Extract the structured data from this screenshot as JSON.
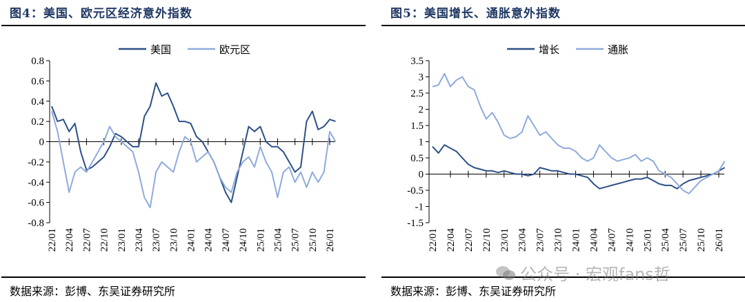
{
  "left": {
    "title": "图4：美国、欧元区经济意外指数",
    "source": "数据来源：彭博、东吴证券研究所"
  },
  "right": {
    "title": "图5：美国增长、通胀意外指数",
    "source": "数据来源：彭博、东吴证券研究所"
  },
  "watermark": "公众号 · 宏观fans哲",
  "colors": {
    "dark": "#2b4f86",
    "light": "#8eaadc",
    "title": "#1f3864"
  },
  "chart_data": [
    {
      "type": "line",
      "title": "美国、欧元区经济意外指数",
      "ylim": [
        -0.8,
        0.8
      ],
      "yticks": [
        "0.8",
        "0.6",
        "0.4",
        "0.2",
        "0",
        "-0.2",
        "-0.4",
        "-0.6",
        "-0.8"
      ],
      "ytick_values": [
        0.8,
        0.6,
        0.4,
        0.2,
        0,
        -0.2,
        -0.4,
        -0.6,
        -0.8
      ],
      "xticks": [
        "22/01",
        "22/04",
        "22/07",
        "22/10",
        "23/01",
        "23/04",
        "23/07",
        "23/10",
        "24/01",
        "24/04",
        "24/07",
        "24/10",
        "25/01",
        "25/04",
        "25/07",
        "25/10",
        "26/01"
      ],
      "x_start": "22/01",
      "x_interval": "monthly",
      "legend_position": "top-center",
      "series": [
        {
          "name": "美国",
          "color": "dark",
          "values": [
            0.35,
            0.2,
            0.22,
            0.1,
            0.18,
            -0.1,
            -0.28,
            -0.25,
            -0.2,
            -0.15,
            -0.05,
            0.08,
            0.05,
            0.0,
            -0.05,
            -0.05,
            0.25,
            0.35,
            0.58,
            0.45,
            0.48,
            0.35,
            0.2,
            0.2,
            0.18,
            0.05,
            0.0,
            -0.1,
            -0.2,
            -0.35,
            -0.5,
            -0.6,
            -0.35,
            -0.1,
            0.15,
            0.1,
            0.15,
            0.0,
            -0.05,
            -0.05,
            -0.1,
            -0.2,
            -0.3,
            -0.25,
            0.2,
            0.3,
            0.12,
            0.15,
            0.22,
            0.2
          ]
        },
        {
          "name": "欧元区",
          "color": "light",
          "values": [
            0.3,
            0.1,
            -0.2,
            -0.5,
            -0.3,
            -0.25,
            -0.3,
            -0.2,
            -0.1,
            0.0,
            0.15,
            0.05,
            0.0,
            -0.05,
            -0.1,
            -0.3,
            -0.55,
            -0.65,
            -0.3,
            -0.2,
            -0.25,
            -0.3,
            -0.1,
            0.05,
            0.0,
            -0.2,
            -0.15,
            -0.1,
            -0.2,
            -0.35,
            -0.45,
            -0.5,
            -0.3,
            -0.2,
            -0.15,
            -0.25,
            -0.05,
            -0.2,
            -0.3,
            -0.55,
            -0.3,
            -0.25,
            -0.4,
            -0.3,
            -0.45,
            -0.3,
            -0.4,
            -0.3,
            0.1,
            0.0
          ]
        }
      ]
    },
    {
      "type": "line",
      "title": "美国增长、通胀意外指数",
      "ylim": [
        -1.5,
        3.5
      ],
      "yticks": [
        "3.5",
        "3",
        "2.5",
        "2",
        "1.5",
        "1",
        "0.5",
        "0",
        "-0.5",
        "-1",
        "-1.5"
      ],
      "ytick_values": [
        3.5,
        3,
        2.5,
        2,
        1.5,
        1,
        0.5,
        0,
        -0.5,
        -1,
        -1.5
      ],
      "xticks": [
        "22/01",
        "22/04",
        "22/07",
        "22/10",
        "23/01",
        "23/04",
        "23/07",
        "23/10",
        "24/01",
        "24/04",
        "24/07",
        "24/10",
        "25/01",
        "25/04",
        "25/07",
        "25/10",
        "26/01"
      ],
      "x_start": "22/01",
      "x_interval": "monthly",
      "legend_position": "top-center",
      "series": [
        {
          "name": "增长",
          "color": "dark",
          "values": [
            0.85,
            0.65,
            0.9,
            0.8,
            0.7,
            0.5,
            0.3,
            0.2,
            0.15,
            0.1,
            0.1,
            0.05,
            0.1,
            0.05,
            0.0,
            0.0,
            -0.05,
            0.0,
            0.2,
            0.15,
            0.1,
            0.1,
            0.05,
            0.0,
            0.0,
            -0.05,
            -0.1,
            -0.3,
            -0.45,
            -0.4,
            -0.35,
            -0.3,
            -0.25,
            -0.2,
            -0.15,
            -0.15,
            -0.1,
            -0.2,
            -0.3,
            -0.35,
            -0.35,
            -0.45,
            -0.3,
            -0.2,
            -0.15,
            -0.1,
            -0.05,
            0.0,
            0.1,
            0.2
          ]
        },
        {
          "name": "通胀",
          "color": "light",
          "values": [
            2.7,
            2.75,
            3.1,
            2.7,
            2.9,
            3.0,
            2.7,
            2.6,
            2.1,
            1.7,
            1.9,
            1.6,
            1.2,
            1.1,
            1.15,
            1.3,
            1.8,
            1.5,
            1.2,
            1.3,
            1.1,
            0.9,
            0.8,
            0.8,
            0.7,
            0.5,
            0.4,
            0.5,
            0.9,
            0.7,
            0.5,
            0.4,
            0.45,
            0.5,
            0.6,
            0.4,
            0.5,
            0.4,
            0.1,
            0.0,
            -0.1,
            -0.3,
            -0.5,
            -0.6,
            -0.4,
            -0.2,
            -0.1,
            0.0,
            0.1,
            0.4
          ]
        }
      ]
    }
  ]
}
